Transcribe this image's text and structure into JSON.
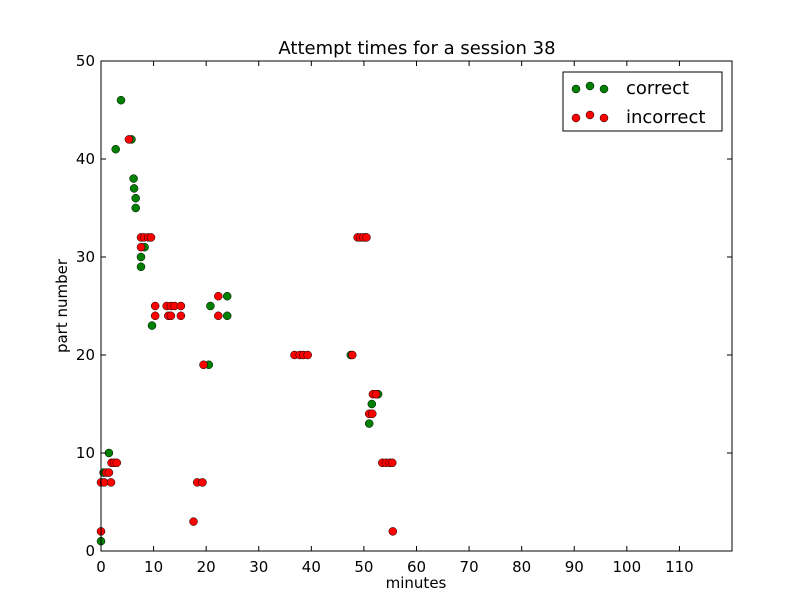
{
  "chart_data": {
    "type": "scatter",
    "title": "Attempt times for a session 38",
    "xlabel": "minutes",
    "ylabel": "part number",
    "xlim": [
      0,
      120
    ],
    "ylim": [
      0,
      50
    ],
    "xticks": [
      0,
      10,
      20,
      30,
      40,
      50,
      60,
      70,
      80,
      90,
      100,
      110
    ],
    "yticks": [
      0,
      10,
      20,
      30,
      40,
      50
    ],
    "grid": false,
    "legend_position": "top-right",
    "series": [
      {
        "name": "correct",
        "color": "#008000",
        "points": [
          [
            0,
            1
          ],
          [
            0.5,
            8
          ],
          [
            1.5,
            10
          ],
          [
            2.8,
            41
          ],
          [
            3.8,
            46
          ],
          [
            5.8,
            42
          ],
          [
            6.2,
            38
          ],
          [
            6.3,
            37
          ],
          [
            6.6,
            36
          ],
          [
            6.6,
            35
          ],
          [
            7.6,
            30
          ],
          [
            7.6,
            29
          ],
          [
            8.3,
            31
          ],
          [
            9.7,
            23
          ],
          [
            20.5,
            19
          ],
          [
            20.8,
            25
          ],
          [
            24.0,
            26
          ],
          [
            24.0,
            24
          ],
          [
            47.5,
            20
          ],
          [
            50.3,
            32
          ],
          [
            51.0,
            13
          ],
          [
            51.5,
            15
          ],
          [
            52.7,
            16
          ]
        ]
      },
      {
        "name": "incorrect",
        "color": "#ff0000",
        "points": [
          [
            0,
            2
          ],
          [
            0,
            7
          ],
          [
            0.6,
            7
          ],
          [
            1.0,
            8
          ],
          [
            1.5,
            8
          ],
          [
            1.9,
            7
          ],
          [
            2.0,
            9
          ],
          [
            2.5,
            9
          ],
          [
            3.0,
            9
          ],
          [
            5.3,
            42
          ],
          [
            7.6,
            32
          ],
          [
            7.6,
            31
          ],
          [
            8.2,
            32
          ],
          [
            9.0,
            32
          ],
          [
            9.5,
            32
          ],
          [
            10.3,
            25
          ],
          [
            10.3,
            24
          ],
          [
            12.5,
            25
          ],
          [
            12.8,
            24
          ],
          [
            13.3,
            24
          ],
          [
            13.3,
            25
          ],
          [
            14.0,
            25
          ],
          [
            15.2,
            25
          ],
          [
            15.2,
            24
          ],
          [
            17.6,
            3
          ],
          [
            18.3,
            7
          ],
          [
            19.3,
            7
          ],
          [
            19.5,
            19
          ],
          [
            22.3,
            26
          ],
          [
            22.3,
            24
          ],
          [
            36.8,
            20
          ],
          [
            37.8,
            20
          ],
          [
            38.5,
            20
          ],
          [
            39.3,
            20
          ],
          [
            47.8,
            20
          ],
          [
            48.8,
            32
          ],
          [
            49.3,
            32
          ],
          [
            49.9,
            32
          ],
          [
            50.5,
            32
          ],
          [
            51.0,
            14
          ],
          [
            51.6,
            14
          ],
          [
            51.7,
            16
          ],
          [
            52.3,
            16
          ],
          [
            53.5,
            9
          ],
          [
            54.2,
            9
          ],
          [
            54.9,
            9
          ],
          [
            55.4,
            9
          ],
          [
            55.5,
            2
          ]
        ]
      }
    ]
  }
}
